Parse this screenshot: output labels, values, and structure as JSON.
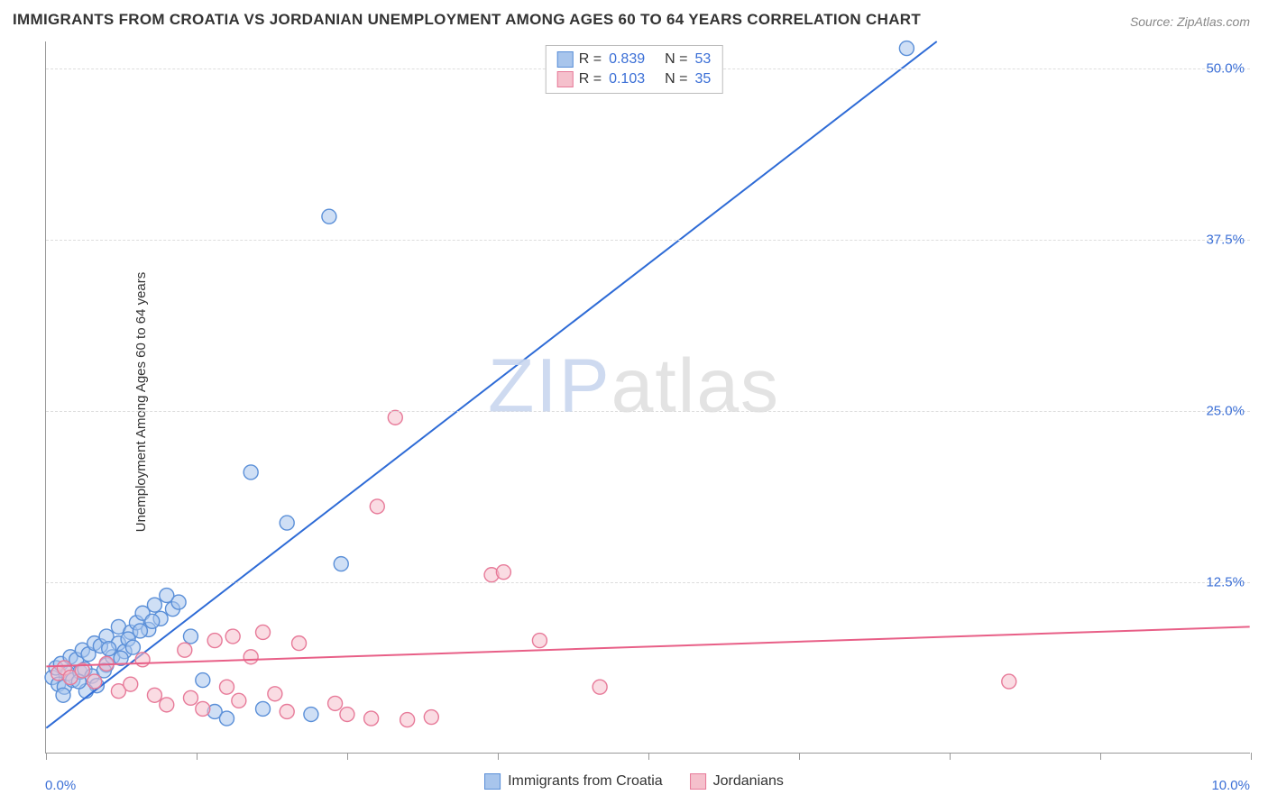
{
  "title": "IMMIGRANTS FROM CROATIA VS JORDANIAN UNEMPLOYMENT AMONG AGES 60 TO 64 YEARS CORRELATION CHART",
  "source": "Source: ZipAtlas.com",
  "ylabel": "Unemployment Among Ages 60 to 64 years",
  "watermark_a": "ZIP",
  "watermark_b": "atlas",
  "chart": {
    "type": "scatter",
    "xlim": [
      0,
      10
    ],
    "ylim": [
      0,
      52
    ],
    "xticks": [
      0,
      1.25,
      2.5,
      3.75,
      5.0,
      6.25,
      7.5,
      8.75,
      10
    ],
    "yticks": [
      12.5,
      25.0,
      37.5,
      50.0
    ],
    "ytick_labels": [
      "12.5%",
      "25.0%",
      "37.5%",
      "50.0%"
    ],
    "x_min_label": "0.0%",
    "x_max_label": "10.0%",
    "background_color": "#ffffff",
    "grid_color": "#dddddd",
    "axis_color": "#999999",
    "marker_radius": 8,
    "marker_stroke_width": 1.4,
    "line_width": 2,
    "series": [
      {
        "name": "Immigrants from Croatia",
        "color_fill": "#a8c5ec",
        "color_stroke": "#5a8fd8",
        "line_color": "#2e6bd6",
        "r": 0.839,
        "n": 53,
        "trend": {
          "x1": 0,
          "y1": 1.8,
          "x2": 7.4,
          "y2": 52
        },
        "points": [
          [
            0.05,
            5.5
          ],
          [
            0.08,
            6.2
          ],
          [
            0.1,
            5.0
          ],
          [
            0.12,
            6.5
          ],
          [
            0.15,
            4.8
          ],
          [
            0.18,
            5.8
          ],
          [
            0.2,
            7.0
          ],
          [
            0.22,
            5.3
          ],
          [
            0.25,
            6.8
          ],
          [
            0.28,
            5.9
          ],
          [
            0.3,
            7.5
          ],
          [
            0.32,
            6.1
          ],
          [
            0.35,
            7.2
          ],
          [
            0.38,
            5.6
          ],
          [
            0.4,
            8.0
          ],
          [
            0.45,
            7.8
          ],
          [
            0.5,
            6.4
          ],
          [
            0.5,
            8.5
          ],
          [
            0.55,
            7.0
          ],
          [
            0.6,
            9.2
          ],
          [
            0.6,
            8.0
          ],
          [
            0.65,
            7.4
          ],
          [
            0.7,
            8.8
          ],
          [
            0.75,
            9.5
          ],
          [
            0.8,
            10.2
          ],
          [
            0.85,
            9.0
          ],
          [
            0.9,
            10.8
          ],
          [
            0.95,
            9.8
          ],
          [
            1.0,
            11.5
          ],
          [
            1.05,
            10.5
          ],
          [
            1.1,
            11.0
          ],
          [
            1.2,
            8.5
          ],
          [
            1.3,
            5.3
          ],
          [
            1.4,
            3.0
          ],
          [
            1.5,
            2.5
          ],
          [
            1.7,
            20.5
          ],
          [
            1.8,
            3.2
          ],
          [
            2.0,
            16.8
          ],
          [
            2.2,
            2.8
          ],
          [
            2.35,
            39.2
          ],
          [
            2.45,
            13.8
          ],
          [
            7.15,
            51.5
          ],
          [
            0.42,
            4.9
          ],
          [
            0.48,
            6.0
          ],
          [
            0.33,
            4.5
          ],
          [
            0.27,
            5.2
          ],
          [
            0.14,
            4.2
          ],
          [
            0.52,
            7.6
          ],
          [
            0.68,
            8.3
          ],
          [
            0.78,
            8.9
          ],
          [
            0.88,
            9.6
          ],
          [
            0.62,
            6.9
          ],
          [
            0.72,
            7.7
          ]
        ]
      },
      {
        "name": "Jordanians",
        "color_fill": "#f5c0cc",
        "color_stroke": "#e77a99",
        "line_color": "#e85f87",
        "r": 0.103,
        "n": 35,
        "trend": {
          "x1": 0,
          "y1": 6.3,
          "x2": 10,
          "y2": 9.2
        },
        "points": [
          [
            0.1,
            5.8
          ],
          [
            0.15,
            6.2
          ],
          [
            0.2,
            5.5
          ],
          [
            0.3,
            6.0
          ],
          [
            0.4,
            5.2
          ],
          [
            0.5,
            6.5
          ],
          [
            0.6,
            4.5
          ],
          [
            0.7,
            5.0
          ],
          [
            0.9,
            4.2
          ],
          [
            1.0,
            3.5
          ],
          [
            1.15,
            7.5
          ],
          [
            1.2,
            4.0
          ],
          [
            1.3,
            3.2
          ],
          [
            1.4,
            8.2
          ],
          [
            1.5,
            4.8
          ],
          [
            1.55,
            8.5
          ],
          [
            1.6,
            3.8
          ],
          [
            1.7,
            7.0
          ],
          [
            1.8,
            8.8
          ],
          [
            1.9,
            4.3
          ],
          [
            2.0,
            3.0
          ],
          [
            2.1,
            8.0
          ],
          [
            2.4,
            3.6
          ],
          [
            2.5,
            2.8
          ],
          [
            2.7,
            2.5
          ],
          [
            2.75,
            18.0
          ],
          [
            2.9,
            24.5
          ],
          [
            3.0,
            2.4
          ],
          [
            3.2,
            2.6
          ],
          [
            3.7,
            13.0
          ],
          [
            3.8,
            13.2
          ],
          [
            4.1,
            8.2
          ],
          [
            4.6,
            4.8
          ],
          [
            8.0,
            5.2
          ],
          [
            0.8,
            6.8
          ]
        ]
      }
    ]
  },
  "legend_bottom": [
    {
      "label": "Immigrants from Croatia"
    },
    {
      "label": "Jordanians"
    }
  ]
}
